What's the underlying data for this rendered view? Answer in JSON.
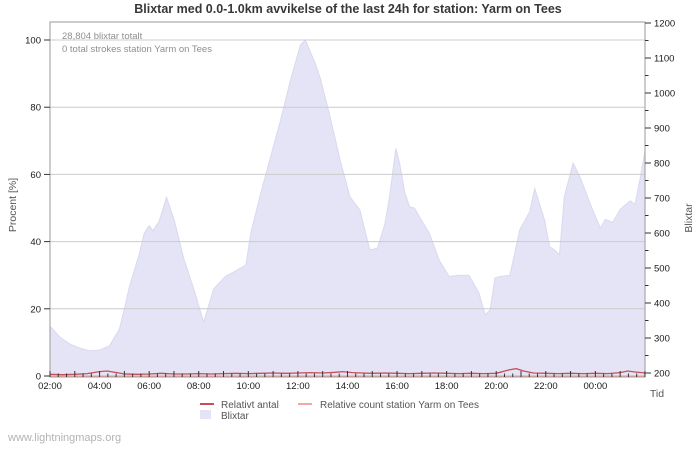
{
  "page": {
    "watermark": "www.lightningmaps.org"
  },
  "chart_data": {
    "type": "area",
    "title": "Blixtar med 0.0-1.0km avvikelse of the last 24h for station: Yarm on Tees",
    "annotations": [
      "28,804 blixtar totalt",
      "0 total strokes station Yarm on Tees"
    ],
    "xlabel": "Tid",
    "ylabel_left": "Procent  [%]",
    "ylabel_right": "Blixtar",
    "x_tick_labels": [
      "02:00",
      "04:00",
      "06:00",
      "08:00",
      "10:00",
      "12:00",
      "14:00",
      "16:00",
      "18:00",
      "20:00",
      "22:00",
      "00:00"
    ],
    "x_hours_span": 24,
    "x_label_step_hours": 2,
    "x_minor_step_hours": 0.3333,
    "y_left_ticks": [
      0,
      20,
      40,
      60,
      80,
      100
    ],
    "y_left_range": [
      0,
      100
    ],
    "y_right_ticks": [
      200,
      300,
      400,
      500,
      600,
      700,
      800,
      900,
      1000,
      1100,
      1200
    ],
    "y_right_minor_step": 50,
    "y_right_range": [
      200,
      1200
    ],
    "grid": "horizontal-only",
    "legend_position": "bottom",
    "colors": {
      "grid": "#cccccc",
      "border": "#9a9a9a",
      "axis": "#333333"
    },
    "series": [
      {
        "name": "Blixtar",
        "type": "area",
        "axis": "right",
        "fill": "#e4e4f6",
        "edge": "#d9d9f0",
        "x": [
          0,
          0.4,
          0.8,
          1.2,
          1.6,
          2.0,
          2.4,
          2.8,
          3.0,
          3.2,
          3.6,
          3.8,
          4.0,
          4.15,
          4.4,
          4.7,
          5.0,
          5.4,
          5.8,
          6.2,
          6.6,
          7.1,
          7.4,
          7.9,
          8.1,
          8.5,
          8.9,
          9.3,
          9.7,
          10.1,
          10.3,
          10.7,
          10.9,
          11.3,
          11.7,
          12.1,
          12.5,
          12.9,
          13.2,
          13.5,
          13.7,
          13.95,
          14.1,
          14.3,
          14.5,
          14.7,
          14.9,
          15.3,
          15.7,
          16.1,
          16.5,
          16.9,
          17.3,
          17.55,
          17.75,
          17.95,
          18.15,
          18.55,
          18.95,
          19.35,
          19.55,
          19.95,
          20.15,
          20.35,
          20.55,
          20.75,
          21.1,
          21.4,
          21.8,
          22.2,
          22.4,
          22.7,
          23.0,
          23.4,
          23.6,
          23.8,
          24.0
        ],
        "y_percent": [
          14.8,
          11.6,
          9.5,
          8.3,
          7.5,
          7.7,
          9.0,
          14.0,
          20.0,
          26.5,
          36.3,
          42.5,
          44.7,
          43.2,
          46.0,
          53.2,
          46.7,
          34.8,
          25.9,
          16.0,
          25.9,
          29.8,
          30.9,
          33.0,
          42.5,
          54.4,
          65.2,
          76.2,
          88.1,
          98.5,
          100.0,
          93.0,
          88.7,
          77.1,
          64.3,
          53.3,
          49.4,
          37.5,
          38.0,
          45.0,
          53.4,
          67.7,
          63.4,
          54.9,
          50.4,
          50.0,
          47.4,
          42.5,
          34.5,
          29.6,
          30.0,
          30.0,
          24.7,
          18.2,
          19.6,
          29.2,
          29.6,
          30.0,
          43.5,
          48.9,
          55.8,
          46.4,
          38.5,
          37.5,
          36.1,
          53.5,
          63.4,
          58.9,
          51.0,
          44.0,
          46.6,
          45.7,
          49.6,
          52.1,
          51.1,
          58.6,
          66.9
        ]
      },
      {
        "name": "Relativt antal",
        "type": "line",
        "axis": "left",
        "color": "#c65058",
        "x": [
          0,
          0.5,
          1,
          1.5,
          2,
          2.3,
          2.7,
          3,
          3.5,
          4,
          4.5,
          5,
          5.5,
          6,
          6.5,
          7,
          7.5,
          8,
          8.5,
          9,
          9.5,
          10,
          10.5,
          11,
          11.5,
          11.8,
          12.2,
          12.6,
          13,
          13.5,
          14,
          14.5,
          15,
          15.5,
          16,
          16.5,
          17,
          17.5,
          18,
          18.5,
          18.8,
          19.1,
          19.5,
          20,
          20.5,
          21,
          21.5,
          22,
          22.5,
          23,
          23.3,
          23.6,
          24
        ],
        "y_percent": [
          0.5,
          0.4,
          0.5,
          0.7,
          1.3,
          1.5,
          1.0,
          0.6,
          0.5,
          0.6,
          0.8,
          0.6,
          0.6,
          0.7,
          0.6,
          0.7,
          0.8,
          0.7,
          0.8,
          0.9,
          0.8,
          0.9,
          1.0,
          0.9,
          1.1,
          1.3,
          1.0,
          0.9,
          0.8,
          0.9,
          0.8,
          0.7,
          0.8,
          0.9,
          0.8,
          0.7,
          0.8,
          0.7,
          0.8,
          1.8,
          2.2,
          1.5,
          0.9,
          0.8,
          0.7,
          0.8,
          0.7,
          0.8,
          0.7,
          1.0,
          1.5,
          1.2,
          0.9
        ]
      },
      {
        "name": "Relative count station Yarm on Tees",
        "type": "line",
        "axis": "left",
        "color": "#f4a7a7",
        "y_const_percent": 0
      }
    ],
    "legend": [
      "Relativt antal",
      "Relative count station Yarm on Tees",
      "Blixtar"
    ]
  }
}
